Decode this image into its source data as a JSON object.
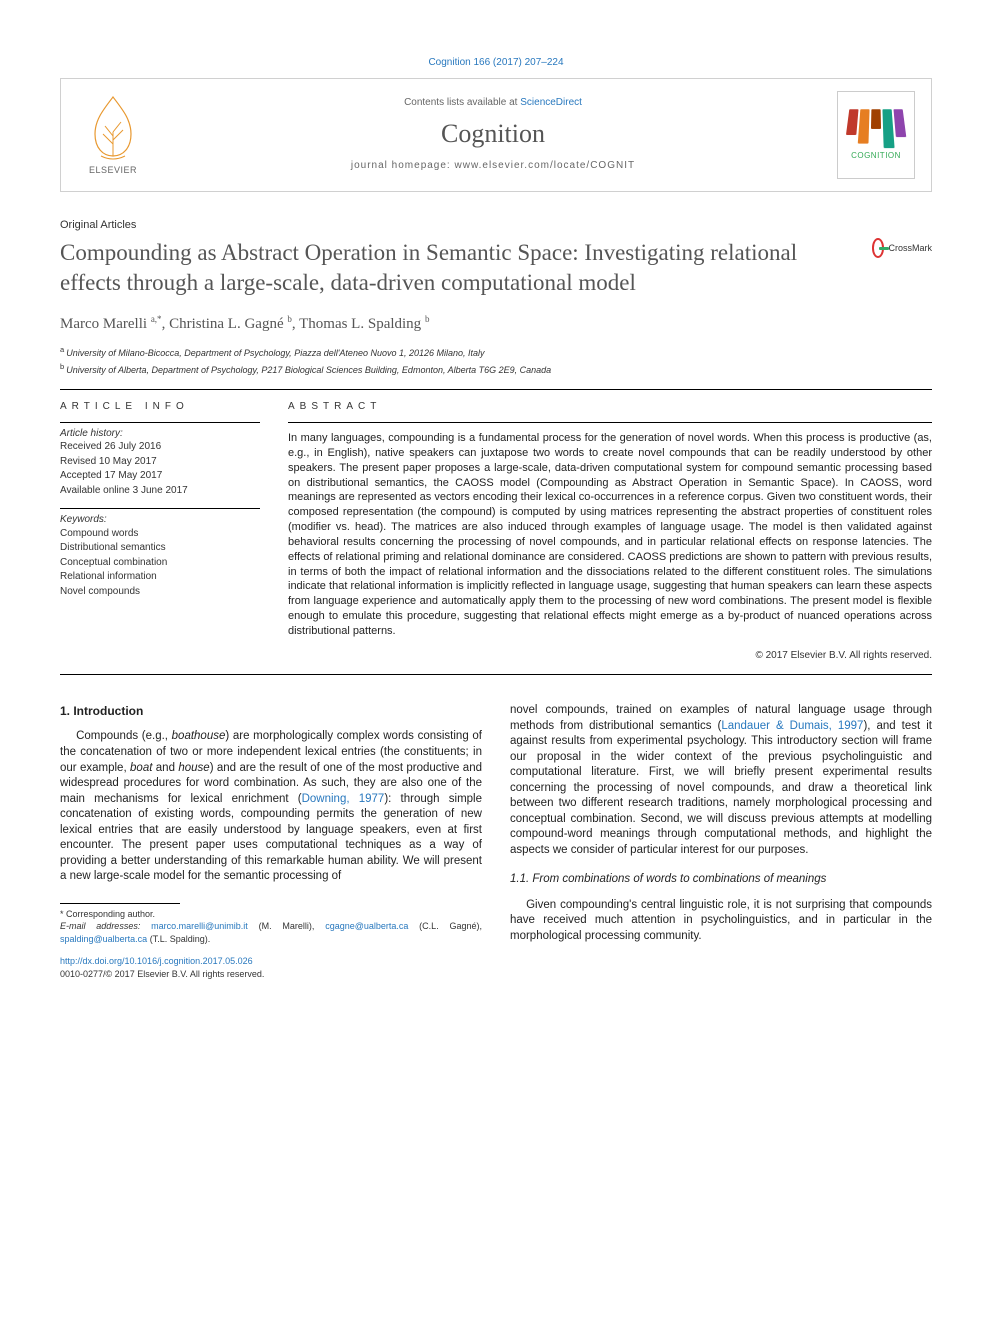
{
  "header": {
    "citation": "Cognition 166 (2017) 207–224",
    "contents_avail": "Contents lists available at ",
    "sciencedirect": "ScienceDirect",
    "journal_name": "Cognition",
    "homepage_label": "journal homepage: ",
    "homepage_url": "www.elsevier.com/locate/COGNIT",
    "elsevier_label": "ELSEVIER",
    "cognition_label": "COGNITION",
    "logo_bar_colors": [
      "#c0392b",
      "#e67e22",
      "#a04000",
      "#16a085",
      "#8e44ad"
    ],
    "logo_bar_heights": [
      28,
      36,
      22,
      40,
      30
    ]
  },
  "article": {
    "type": "Original Articles",
    "title": "Compounding as Abstract Operation in Semantic Space: Investigating relational effects through a large-scale, data-driven computational model",
    "crossmark_label": "CrossMark",
    "authors_html": "Marco Marelli",
    "authors": [
      {
        "name": "Marco Marelli",
        "sup": "a,*"
      },
      {
        "name": "Christina L. Gagné",
        "sup": "b"
      },
      {
        "name": "Thomas L. Spalding",
        "sup": "b"
      }
    ],
    "affiliations": [
      {
        "sup": "a",
        "text": "University of Milano-Bicocca, Department of Psychology, Piazza dell'Ateneo Nuovo 1, 20126 Milano, Italy"
      },
      {
        "sup": "b",
        "text": "University of Alberta, Department of Psychology, P217 Biological Sciences Building, Edmonton, Alberta T6G 2E9, Canada"
      }
    ]
  },
  "info": {
    "info_head": "ARTICLE INFO",
    "abs_head": "ABSTRACT",
    "history_label": "Article history:",
    "history": [
      "Received 26 July 2016",
      "Revised 10 May 2017",
      "Accepted 17 May 2017",
      "Available online 3 June 2017"
    ],
    "keywords_label": "Keywords:",
    "keywords": [
      "Compound words",
      "Distributional semantics",
      "Conceptual combination",
      "Relational information",
      "Novel compounds"
    ]
  },
  "abstract": {
    "text": "In many languages, compounding is a fundamental process for the generation of novel words. When this process is productive (as, e.g., in English), native speakers can juxtapose two words to create novel compounds that can be readily understood by other speakers. The present paper proposes a large-scale, data-driven computational system for compound semantic processing based on distributional semantics, the CAOSS model (Compounding as Abstract Operation in Semantic Space). In CAOSS, word meanings are represented as vectors encoding their lexical co-occurrences in a reference corpus. Given two constituent words, their composed representation (the compound) is computed by using matrices representing the abstract properties of constituent roles (modifier vs. head). The matrices are also induced through examples of language usage. The model is then validated against behavioral results concerning the processing of novel compounds, and in particular relational effects on response latencies. The effects of relational priming and relational dominance are considered. CAOSS predictions are shown to pattern with previous results, in terms of both the impact of relational information and the dissociations related to the different constituent roles. The simulations indicate that relational information is implicitly reflected in language usage, suggesting that human speakers can learn these aspects from language experience and automatically apply them to the processing of new word combinations. The present model is flexible enough to emulate this procedure, suggesting that relational effects might emerge as a by-product of nuanced operations across distributional patterns.",
    "copyright": "© 2017 Elsevier B.V. All rights reserved."
  },
  "body": {
    "sec1_head": "1. Introduction",
    "intro_p1_a": "Compounds (e.g., ",
    "intro_p1_it1": "boathouse",
    "intro_p1_b": ") are morphologically complex words consisting of the concatenation of two or more independent lexical entries (the constituents; in our example, ",
    "intro_p1_it2": "boat",
    "intro_p1_c": " and ",
    "intro_p1_it3": "house",
    "intro_p1_d": ") and are the result of one of the most productive and widespread procedures for word combination. As such, they are also one of the main mechanisms for lexical enrichment (",
    "intro_p1_cite": "Downing, 1977",
    "intro_p1_e": "): through simple concatenation of existing words, compounding permits the generation of new lexical entries that are easily understood by language speakers, even at first encounter. The present paper uses computational techniques as a way of providing a better understanding of this remarkable human ability. We will present a new large-scale model for the semantic processing of",
    "intro_p1_cont_a": "novel compounds, trained on examples of natural language usage through methods from distributional semantics (",
    "intro_p1_cont_cite": "Landauer & Dumais, 1997",
    "intro_p1_cont_b": "), and test it against results from experimental psychology. This introductory section will frame our proposal in the wider context of the previous psycholinguistic and computational literature. First, we will briefly present experimental results concerning the processing of novel compounds, and draw a theoretical link between two different research traditions, namely morphological processing and conceptual combination. Second, we will discuss previous attempts at modelling compound-word meanings through computational methods, and highlight the aspects we consider of particular interest for our purposes.",
    "sec11_head": "1.1. From combinations of words to combinations of meanings",
    "sec11_p1": "Given compounding's central linguistic role, it is not surprising that compounds have received much attention in psycholinguistics, and in particular in the morphological processing community."
  },
  "footnote": {
    "corr_label": "* Corresponding author.",
    "email_label": "E-mail addresses: ",
    "emails": [
      {
        "addr": "marco.marelli@unimib.it",
        "who": " (M. Marelli), "
      },
      {
        "addr": "cgagne@ualberta.ca",
        "who": " (C.L. Gagné), "
      },
      {
        "addr": "spalding@ualberta.ca",
        "who": " (T.L. Spalding)."
      }
    ]
  },
  "footer": {
    "doi": "http://dx.doi.org/10.1016/j.cognition.2017.05.026",
    "issn_line": "0010-0277/© 2017 Elsevier B.V. All rights reserved."
  },
  "colors": {
    "link": "#2878be",
    "text": "#222222",
    "heading_gray": "#555555",
    "rule": "#000000"
  }
}
